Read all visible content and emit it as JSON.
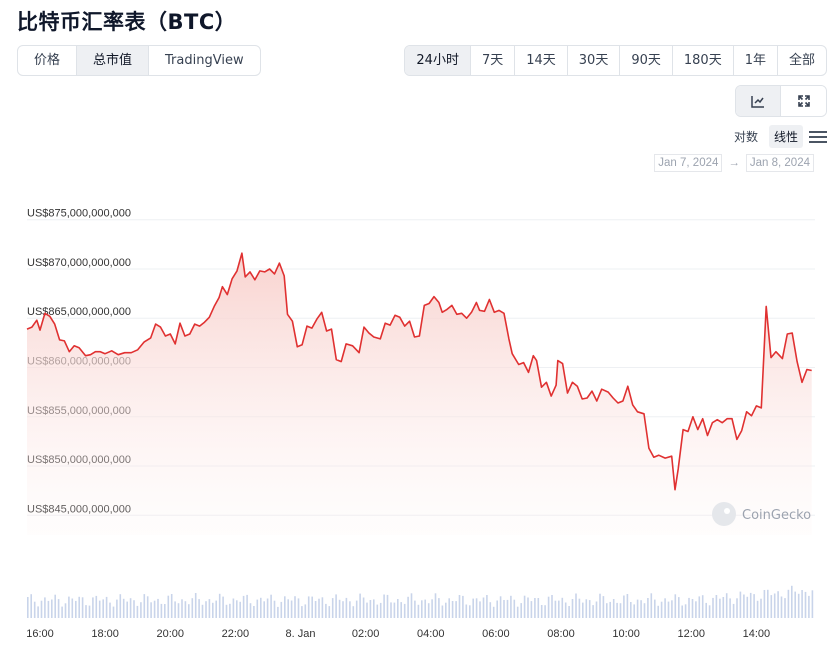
{
  "title": "比特币汇率表（BTC）",
  "metric_tabs": [
    {
      "label": "价格",
      "active": false
    },
    {
      "label": "总市值",
      "active": true
    },
    {
      "label": "TradingView",
      "active": false
    }
  ],
  "range_tabs": [
    {
      "label": "24小时",
      "active": true
    },
    {
      "label": "7天",
      "active": false
    },
    {
      "label": "14天",
      "active": false
    },
    {
      "label": "30天",
      "active": false
    },
    {
      "label": "90天",
      "active": false
    },
    {
      "label": "180天",
      "active": false
    },
    {
      "label": "1年",
      "active": false
    },
    {
      "label": "全部",
      "active": false
    }
  ],
  "view_buttons": [
    {
      "icon": "line-chart-icon",
      "active": true
    },
    {
      "icon": "fullscreen-icon",
      "active": false
    }
  ],
  "scale": {
    "log_label": "对数",
    "linear_label": "线性",
    "active": "linear",
    "menu_icon": "menu-icon"
  },
  "date_range": {
    "from": "Jan 7, 2024",
    "arrow": "→",
    "to": "Jan 8, 2024"
  },
  "watermark": "CoinGecko",
  "colors": {
    "line": "#e03131",
    "fill_top": "#f8d0cc",
    "volume": "#c9d4ea",
    "grid": "#eef0f3",
    "active_tab": "#eef0f3"
  },
  "chart_data": {
    "type": "line",
    "series_label": "总市值",
    "ylim": [
      843000000000,
      877000000000
    ],
    "y_ticks": [
      845000000000,
      850000000000,
      855000000000,
      860000000000,
      865000000000,
      870000000000,
      875000000000
    ],
    "y_tick_labels": [
      "US$845,000,000,000",
      "US$850,000,000,000",
      "US$855,000,000,000",
      "US$860,000,000,000",
      "US$865,000,000,000",
      "US$870,000,000,000",
      "US$875,000,000,000"
    ],
    "x_tick_labels": [
      "16:00",
      "18:00",
      "20:00",
      "22:00",
      "8. Jan",
      "02:00",
      "04:00",
      "06:00",
      "08:00",
      "10:00",
      "12:00",
      "14:00"
    ],
    "grid": true,
    "x_range_hours": [
      15.6,
      39.8
    ],
    "x_ticks_hours": [
      16,
      18,
      20,
      22,
      24,
      26,
      28,
      30,
      32,
      34,
      36,
      38
    ],
    "points": [
      [
        15.6,
        863.9
      ],
      [
        15.75,
        864.1
      ],
      [
        15.9,
        864.8
      ],
      [
        16.0,
        863.8
      ],
      [
        16.15,
        865.5
      ],
      [
        16.3,
        865.2
      ],
      [
        16.45,
        864.4
      ],
      [
        16.6,
        862.8
      ],
      [
        16.75,
        862.7
      ],
      [
        16.9,
        861.6
      ],
      [
        17.05,
        862.2
      ],
      [
        17.2,
        862.0
      ],
      [
        17.4,
        861.2
      ],
      [
        17.55,
        861.3
      ],
      [
        17.7,
        861.6
      ],
      [
        17.85,
        861.6
      ],
      [
        18.0,
        861.4
      ],
      [
        18.2,
        861.7
      ],
      [
        18.4,
        861.3
      ],
      [
        18.6,
        861.5
      ],
      [
        18.8,
        861.5
      ],
      [
        19.0,
        861.8
      ],
      [
        19.2,
        862.6
      ],
      [
        19.4,
        863.0
      ],
      [
        19.55,
        864.4
      ],
      [
        19.7,
        864.1
      ],
      [
        19.85,
        863.2
      ],
      [
        20.0,
        863.4
      ],
      [
        20.15,
        862.4
      ],
      [
        20.3,
        864.5
      ],
      [
        20.45,
        863.2
      ],
      [
        20.6,
        863.4
      ],
      [
        20.75,
        864.4
      ],
      [
        20.9,
        864.2
      ],
      [
        21.05,
        864.6
      ],
      [
        21.2,
        865.1
      ],
      [
        21.35,
        866.2
      ],
      [
        21.5,
        867.1
      ],
      [
        21.6,
        868.2
      ],
      [
        21.75,
        867.4
      ],
      [
        21.9,
        869.0
      ],
      [
        22.05,
        869.8
      ],
      [
        22.2,
        871.6
      ],
      [
        22.3,
        869.2
      ],
      [
        22.45,
        869.7
      ],
      [
        22.6,
        868.9
      ],
      [
        22.75,
        869.8
      ],
      [
        22.9,
        869.7
      ],
      [
        23.05,
        870.0
      ],
      [
        23.2,
        869.5
      ],
      [
        23.35,
        870.6
      ],
      [
        23.5,
        869.3
      ],
      [
        23.6,
        865.4
      ],
      [
        23.75,
        864.7
      ],
      [
        23.9,
        862.1
      ],
      [
        24.05,
        862.3
      ],
      [
        24.2,
        864.2
      ],
      [
        24.35,
        864.0
      ],
      [
        24.5,
        864.9
      ],
      [
        24.65,
        865.6
      ],
      [
        24.8,
        863.7
      ],
      [
        24.95,
        863.9
      ],
      [
        25.1,
        860.8
      ],
      [
        25.25,
        860.6
      ],
      [
        25.4,
        862.4
      ],
      [
        25.6,
        862.2
      ],
      [
        25.8,
        861.5
      ],
      [
        25.95,
        864.1
      ],
      [
        26.1,
        863.5
      ],
      [
        26.25,
        863.1
      ],
      [
        26.45,
        862.9
      ],
      [
        26.6,
        864.5
      ],
      [
        26.75,
        864.3
      ],
      [
        26.9,
        865.3
      ],
      [
        27.05,
        865.1
      ],
      [
        27.2,
        864.2
      ],
      [
        27.35,
        864.7
      ],
      [
        27.5,
        863.1
      ],
      [
        27.65,
        863.2
      ],
      [
        27.8,
        866.3
      ],
      [
        27.95,
        866.5
      ],
      [
        28.1,
        867.2
      ],
      [
        28.25,
        866.6
      ],
      [
        28.35,
        865.6
      ],
      [
        28.5,
        865.9
      ],
      [
        28.65,
        866.3
      ],
      [
        28.8,
        865.4
      ],
      [
        28.95,
        865.5
      ],
      [
        29.1,
        865.0
      ],
      [
        29.25,
        865.6
      ],
      [
        29.4,
        866.6
      ],
      [
        29.5,
        865.8
      ],
      [
        29.65,
        865.7
      ],
      [
        29.8,
        866.9
      ],
      [
        29.95,
        865.6
      ],
      [
        30.1,
        865.8
      ],
      [
        30.25,
        865.5
      ],
      [
        30.4,
        862.9
      ],
      [
        30.5,
        861.4
      ],
      [
        30.7,
        860.3
      ],
      [
        30.85,
        860.5
      ],
      [
        31.0,
        859.5
      ],
      [
        31.15,
        861.2
      ],
      [
        31.25,
        860.7
      ],
      [
        31.4,
        858.0
      ],
      [
        31.55,
        858.5
      ],
      [
        31.7,
        857.1
      ],
      [
        31.85,
        858.2
      ],
      [
        31.9,
        860.7
      ],
      [
        32.05,
        860.4
      ],
      [
        32.2,
        857.4
      ],
      [
        32.35,
        858.5
      ],
      [
        32.5,
        858.1
      ],
      [
        32.65,
        856.8
      ],
      [
        32.8,
        856.9
      ],
      [
        32.95,
        857.6
      ],
      [
        33.1,
        856.6
      ],
      [
        33.25,
        857.8
      ],
      [
        33.45,
        857.5
      ],
      [
        33.6,
        856.9
      ],
      [
        33.75,
        856.4
      ],
      [
        33.9,
        856.6
      ],
      [
        34.05,
        858.1
      ],
      [
        34.2,
        856.2
      ],
      [
        34.35,
        855.5
      ],
      [
        34.55,
        855.3
      ],
      [
        34.7,
        851.8
      ],
      [
        34.85,
        850.9
      ],
      [
        35.0,
        851.1
      ],
      [
        35.2,
        850.8
      ],
      [
        35.4,
        851.0
      ],
      [
        35.5,
        847.6
      ],
      [
        35.6,
        849.7
      ],
      [
        35.75,
        853.7
      ],
      [
        35.9,
        853.5
      ],
      [
        36.05,
        855.0
      ],
      [
        36.2,
        853.7
      ],
      [
        36.35,
        854.8
      ],
      [
        36.5,
        853.1
      ],
      [
        36.65,
        854.4
      ],
      [
        36.8,
        854.7
      ],
      [
        36.95,
        854.4
      ],
      [
        37.1,
        854.8
      ],
      [
        37.25,
        854.8
      ],
      [
        37.4,
        852.7
      ],
      [
        37.55,
        853.6
      ],
      [
        37.7,
        855.5
      ],
      [
        37.85,
        855.1
      ],
      [
        38.0,
        856.1
      ],
      [
        38.15,
        855.9
      ],
      [
        38.3,
        866.2
      ],
      [
        38.45,
        861.0
      ],
      [
        38.6,
        861.6
      ],
      [
        38.8,
        860.9
      ],
      [
        38.95,
        863.4
      ],
      [
        39.1,
        863.5
      ],
      [
        39.25,
        860.6
      ],
      [
        39.4,
        858.5
      ],
      [
        39.55,
        859.8
      ],
      [
        39.7,
        859.7
      ]
    ]
  }
}
